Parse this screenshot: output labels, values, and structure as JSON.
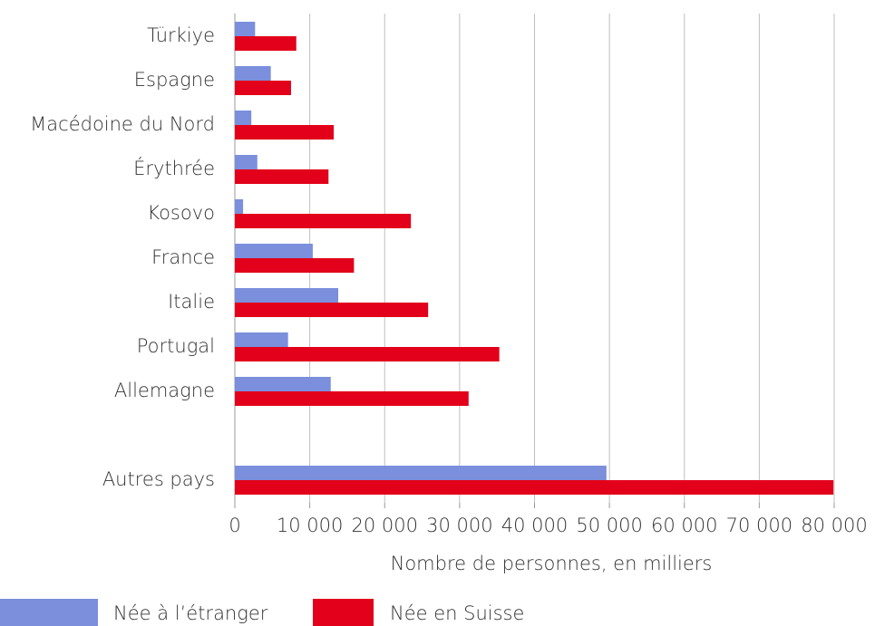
{
  "chart_data": {
    "type": "bar",
    "orientation": "horizontal",
    "x_label": "Nombre de personnes, en milliers",
    "categories": [
      "Türkiye",
      "Espagne",
      "Macédoine du Nord",
      "Érythrée",
      "Kosovo",
      "France",
      "Italie",
      "Portugal",
      "Allemagne",
      null,
      "Autres pays"
    ],
    "series": [
      {
        "name": "Née à l’étranger",
        "color": "#7b8fdc",
        "values": [
          2700,
          4800,
          2200,
          3000,
          1100,
          10400,
          13800,
          7100,
          12800,
          null,
          49600
        ]
      },
      {
        "name": "Née en Suisse",
        "color": "#e2001a",
        "values": [
          8200,
          7500,
          13200,
          12500,
          23500,
          15900,
          25800,
          35300,
          31200,
          null,
          79900
        ]
      }
    ],
    "xlim": [
      0,
      80000
    ],
    "xticks": [
      0,
      {
        "value": 10000,
        "label": "10 000"
      },
      {
        "value": 20000,
        "label": "20 000"
      },
      {
        "value": 30000,
        "label": "30 000"
      },
      {
        "value": 40000,
        "label": "40 000"
      },
      {
        "value": 50000,
        "label": "50 000"
      },
      {
        "value": 60000,
        "label": "60 000"
      },
      {
        "value": 70000,
        "label": "70 000"
      },
      {
        "value": 80000,
        "label": "80 000"
      }
    ],
    "grid": true,
    "legend": "bottom"
  }
}
